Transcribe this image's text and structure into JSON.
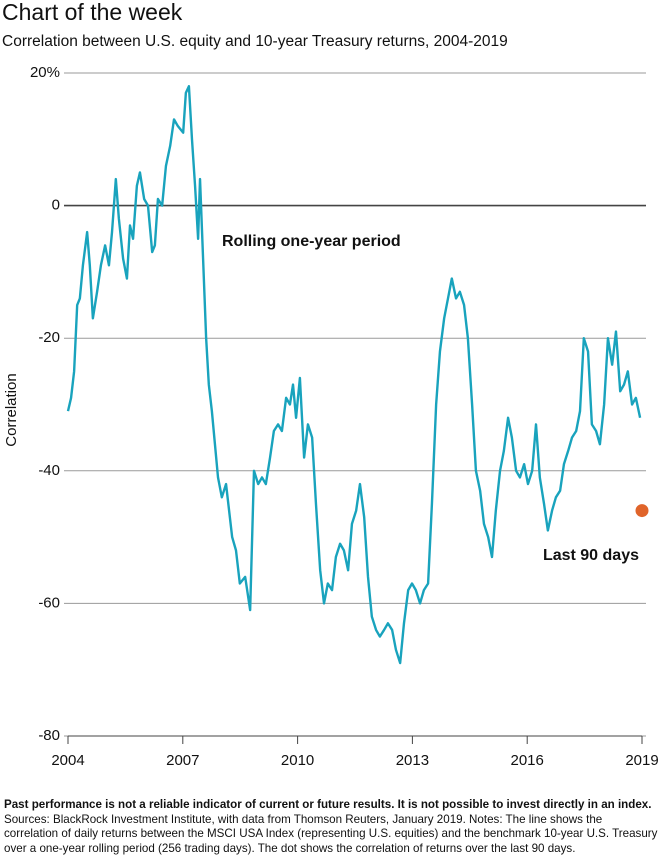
{
  "chart_data": {
    "type": "line",
    "title": "Chart of the week",
    "subtitle": "Correlation between U.S. equity and 10-year Treasury returns, 2004-2019",
    "y_label": "Correlation",
    "xlim": [
      2004,
      2019
    ],
    "xticks": [
      2004,
      2007,
      2010,
      2013,
      2016,
      2019
    ],
    "ylim": [
      -80,
      20
    ],
    "yticks": [
      -80,
      -60,
      -40,
      -20,
      0,
      {
        "value": 20,
        "label": "20%"
      }
    ],
    "grid": true,
    "series": [
      {
        "name": "Rolling one-year period",
        "color": "#19a3bd",
        "x": [
          2004.0,
          2004.08,
          2004.16,
          2004.24,
          2004.31,
          2004.39,
          2004.5,
          2004.57,
          2004.65,
          2004.76,
          2004.86,
          2004.97,
          2005.07,
          2005.15,
          2005.25,
          2005.33,
          2005.44,
          2005.54,
          2005.62,
          2005.7,
          2005.8,
          2005.88,
          2005.99,
          2006.09,
          2006.2,
          2006.27,
          2006.35,
          2006.46,
          2006.56,
          2006.67,
          2006.77,
          2006.87,
          2007.01,
          2007.08,
          2007.16,
          2007.24,
          2007.32,
          2007.4,
          2007.45,
          2007.53,
          2007.61,
          2007.68,
          2007.76,
          2007.84,
          2007.92,
          2008.02,
          2008.13,
          2008.21,
          2008.29,
          2008.39,
          2008.49,
          2008.63,
          2008.76,
          2008.86,
          2008.97,
          2009.07,
          2009.17,
          2009.28,
          2009.38,
          2009.49,
          2009.59,
          2009.7,
          2009.8,
          2009.88,
          2009.96,
          2010.06,
          2010.17,
          2010.27,
          2010.38,
          2010.48,
          2010.59,
          2010.69,
          2010.79,
          2010.9,
          2011.0,
          2011.11,
          2011.21,
          2011.32,
          2011.42,
          2011.53,
          2011.63,
          2011.74,
          2011.84,
          2011.94,
          2012.05,
          2012.15,
          2012.26,
          2012.36,
          2012.47,
          2012.57,
          2012.68,
          2012.78,
          2012.89,
          2012.99,
          2013.09,
          2013.2,
          2013.3,
          2013.41,
          2013.51,
          2013.62,
          2013.72,
          2013.83,
          2013.93,
          2014.03,
          2014.14,
          2014.24,
          2014.35,
          2014.45,
          2014.56,
          2014.66,
          2014.77,
          2014.87,
          2014.98,
          2015.08,
          2015.18,
          2015.29,
          2015.39,
          2015.5,
          2015.6,
          2015.71,
          2015.81,
          2015.92,
          2016.02,
          2016.13,
          2016.23,
          2016.33,
          2016.44,
          2016.54,
          2016.65,
          2016.75,
          2016.86,
          2016.96,
          2017.07,
          2017.17,
          2017.28,
          2017.38,
          2017.48,
          2017.59,
          2017.69,
          2017.8,
          2017.9,
          2018.01,
          2018.11,
          2018.22,
          2018.32,
          2018.43,
          2018.53,
          2018.63,
          2018.74,
          2018.84,
          2018.95
        ],
        "values": [
          -31,
          -29,
          -25,
          -15,
          -14,
          -9,
          -4,
          -9,
          -17,
          -13,
          -9,
          -6,
          -9,
          -4,
          4,
          -2,
          -8,
          -11,
          -3,
          -5,
          3,
          5,
          1,
          0,
          -7,
          -6,
          1,
          0,
          6,
          9,
          13,
          12,
          11,
          17,
          18,
          10,
          3,
          -5,
          4,
          -8,
          -20,
          -27,
          -31,
          -36,
          -41,
          -44,
          -42,
          -46,
          -50,
          -52,
          -57,
          -56,
          -61,
          -40,
          -42,
          -41,
          -42,
          -38,
          -34,
          -33,
          -34,
          -29,
          -30,
          -27,
          -32,
          -26,
          -38,
          -33,
          -35,
          -45,
          -55,
          -60,
          -57,
          -58,
          -53,
          -51,
          -52,
          -55,
          -48,
          -46,
          -42,
          -47,
          -56,
          -62,
          -64,
          -65,
          -64,
          -63,
          -64,
          -67,
          -69,
          -63,
          -58,
          -57,
          -58,
          -60,
          -58,
          -57,
          -45,
          -30,
          -22,
          -17,
          -14,
          -11,
          -14,
          -13,
          -15,
          -20,
          -30,
          -40,
          -43,
          -48,
          -50,
          -53,
          -46,
          -40,
          -37,
          -32,
          -35,
          -40,
          -41,
          -39,
          -42,
          -40,
          -33,
          -41,
          -45,
          -49,
          -46,
          -44,
          -43,
          -39,
          -37,
          -35,
          -34,
          -31,
          -20,
          -22,
          -33,
          -34,
          -36,
          -30,
          -20,
          -24,
          -19,
          -28,
          -27,
          -25,
          -30,
          -29,
          -32
        ]
      },
      {
        "name": "Last 90 days",
        "color": "#e0642a",
        "x": [
          2019.0
        ],
        "values": [
          -46
        ]
      }
    ],
    "note_bold": "Past performance is not a reliable indicator of current or future results. It is not possible to invest directly in an index.",
    "note_text": "Sources: BlackRock Investment Institute, with data from Thomson Reuters, January 2019. Notes: The line shows the correlation of daily returns between the MSCI USA Index (representing U.S. equities) and the benchmark 10-year U.S. Treasury over a one-year rolling period (256 trading days). The dot shows the correlation of returns over the last 90 days."
  }
}
